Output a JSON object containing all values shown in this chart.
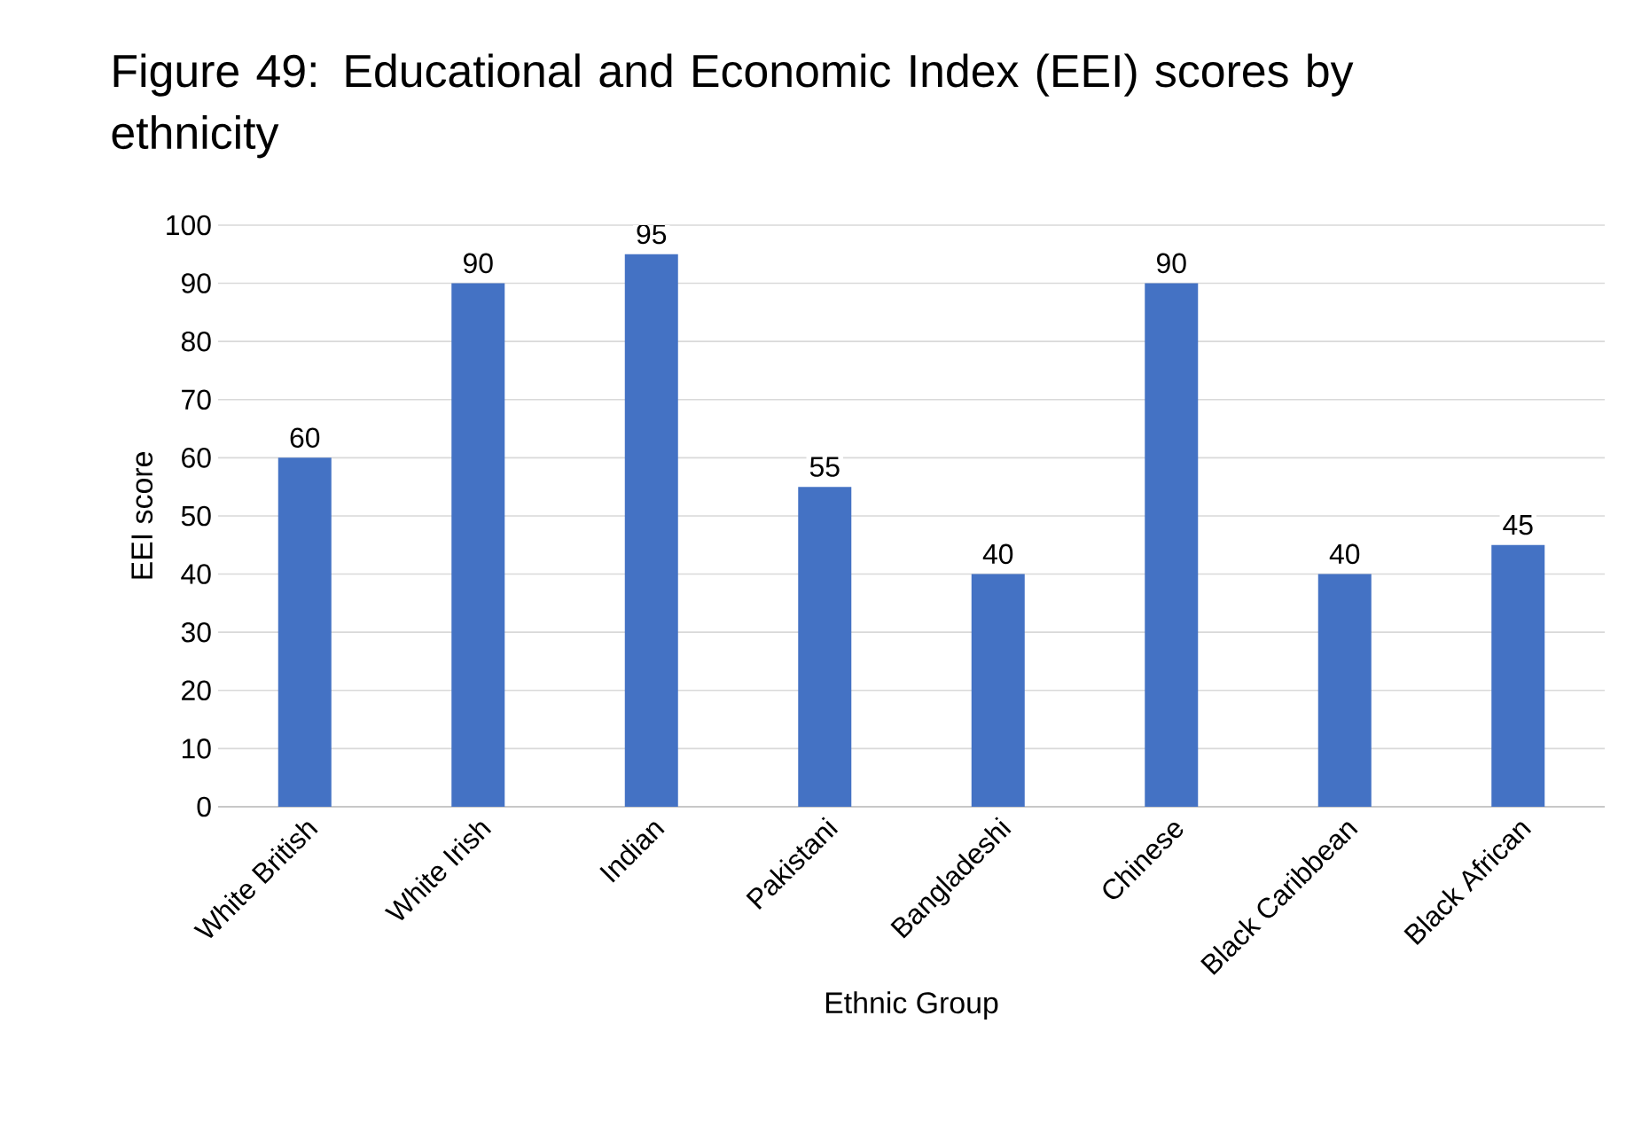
{
  "chart_data": {
    "type": "bar",
    "title": "Figure 49: Educational and Economic Index (EEI) scores by ethnicity",
    "xlabel": "Ethnic Group",
    "ylabel": "EEI score",
    "categories": [
      "White British",
      "White Irish",
      "Indian",
      "Pakistani",
      "Bangladeshi",
      "Chinese",
      "Black Caribbean",
      "Black African"
    ],
    "values": [
      60,
      90,
      95,
      55,
      40,
      90,
      40,
      45
    ],
    "color": "#4472c4",
    "ylim": [
      0,
      100
    ],
    "yticks": [
      0,
      10,
      20,
      30,
      40,
      50,
      60,
      70,
      80,
      90,
      100
    ],
    "grid": "y",
    "data_labels": true
  }
}
